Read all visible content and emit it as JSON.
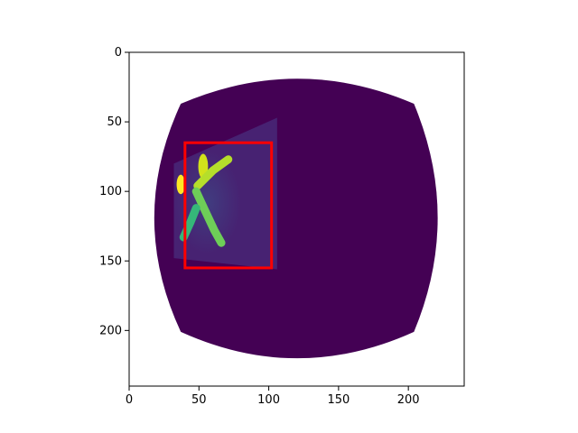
{
  "chart_data": {
    "type": "heatmap",
    "title": "",
    "xlabel": "",
    "ylabel": "",
    "xlim": [
      0,
      240
    ],
    "ylim": [
      240,
      0
    ],
    "x_ticks": [
      0,
      50,
      100,
      150,
      200
    ],
    "y_ticks": [
      0,
      50,
      100,
      150,
      200
    ],
    "x_tick_labels": [
      "0",
      "50",
      "100",
      "150",
      "200"
    ],
    "y_tick_labels": [
      "0",
      "50",
      "100",
      "150",
      "200"
    ],
    "grid": false,
    "colormap": "viridis",
    "background_color": "#ffffff",
    "mask_color": "#440154",
    "image_region": {
      "top_y": 19,
      "bottom_y": 220,
      "left_x": 18,
      "right_x": 221,
      "corner_top_left": [
        37,
        37
      ],
      "corner_top_right": [
        204,
        37
      ],
      "corner_bottom_left": [
        37,
        201
      ],
      "corner_bottom_right": [
        204,
        201
      ]
    },
    "sheared_panel": {
      "polygon": [
        [
          32,
          80
        ],
        [
          106,
          47
        ],
        [
          106,
          156
        ],
        [
          32,
          148
        ]
      ],
      "color": "#482878"
    },
    "figure_blobs": [
      {
        "part": "head",
        "cx": 53,
        "cy": 82,
        "rx": 3.5,
        "ry": 9,
        "color": "#d2e21b"
      },
      {
        "part": "arm",
        "points": [
          [
            49,
            96
          ],
          [
            60,
            85
          ],
          [
            71,
            77
          ]
        ],
        "color": "#b5de2b"
      },
      {
        "part": "torso",
        "points": [
          [
            48,
            100
          ],
          [
            54,
            113
          ],
          [
            61,
            128
          ],
          [
            66,
            137
          ]
        ],
        "color": "#6ece58"
      },
      {
        "part": "leg",
        "points": [
          [
            48,
            112
          ],
          [
            44,
            122
          ],
          [
            39,
            133
          ]
        ],
        "color": "#35b779"
      },
      {
        "part": "left-edge",
        "cx": 37,
        "cy": 95,
        "rx": 3,
        "ry": 7,
        "color": "#fde725"
      }
    ],
    "rectangle": {
      "x0": 40,
      "y0": 65,
      "x1": 102,
      "y1": 155,
      "color": "#ff0000"
    }
  }
}
